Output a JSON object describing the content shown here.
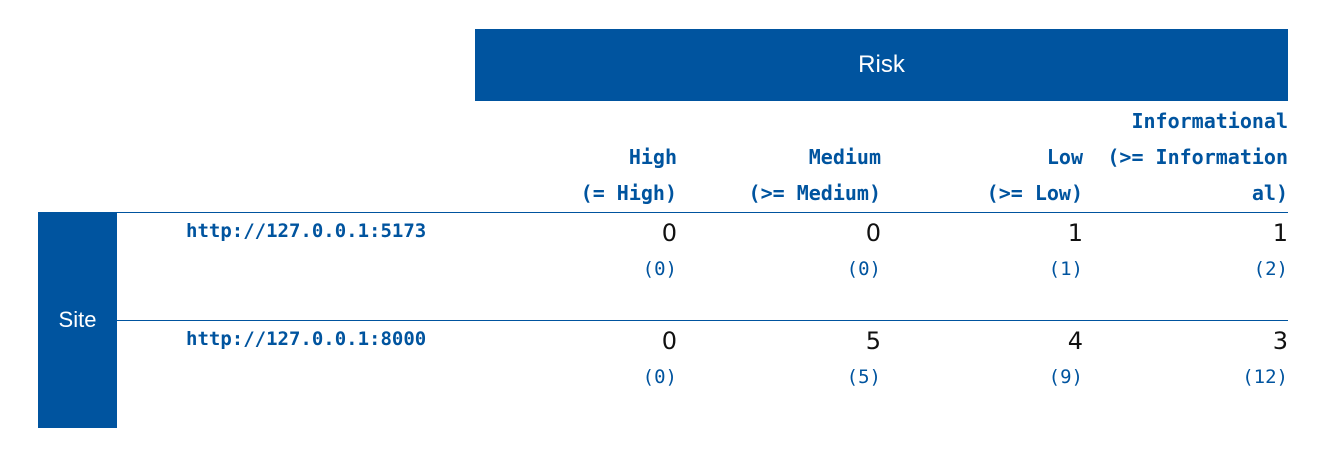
{
  "header": {
    "risk_label": "Risk"
  },
  "columns": [
    {
      "lines": [
        "High",
        "(= High)"
      ]
    },
    {
      "lines": [
        "Medium",
        "(>= Medium)"
      ]
    },
    {
      "lines": [
        "Low",
        "(>= Low)"
      ]
    },
    {
      "lines": [
        "Informational",
        "(>= Information",
        "al)"
      ]
    }
  ],
  "site_label": "Site",
  "rows": [
    {
      "url": "http://127.0.0.1:5173",
      "cells": [
        {
          "value": "0",
          "cumulative": "(0)"
        },
        {
          "value": "0",
          "cumulative": "(0)"
        },
        {
          "value": "1",
          "cumulative": "(1)"
        },
        {
          "value": "1",
          "cumulative": "(2)"
        }
      ]
    },
    {
      "url": "http://127.0.0.1:8000",
      "cells": [
        {
          "value": "0",
          "cumulative": "(0)"
        },
        {
          "value": "5",
          "cumulative": "(5)"
        },
        {
          "value": "4",
          "cumulative": "(9)"
        },
        {
          "value": "3",
          "cumulative": "(12)"
        }
      ]
    }
  ]
}
